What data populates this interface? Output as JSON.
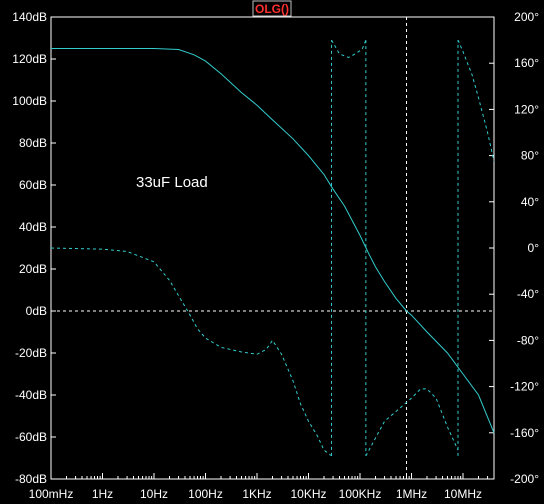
{
  "chart_data": {
    "type": "line",
    "trace_name": "OLG()",
    "annotation": "33uF Load",
    "x_scale": "log",
    "x_ticks": [
      "100mHz",
      "1Hz",
      "10Hz",
      "100Hz",
      "1KHz",
      "10KHz",
      "100KHz",
      "1MHz",
      "10MHz"
    ],
    "x_tick_values": [
      0.1,
      1,
      10,
      100,
      1000,
      10000,
      100000,
      1000000,
      10000000
    ],
    "xlim": [
      0.1,
      40000000
    ],
    "y_left_ticks": [
      "140dB",
      "120dB",
      "100dB",
      "80dB",
      "60dB",
      "40dB",
      "20dB",
      "0dB",
      "-20dB",
      "-40dB",
      "-60dB",
      "-80dB"
    ],
    "y_left_tick_values": [
      140,
      120,
      100,
      80,
      60,
      40,
      20,
      0,
      -20,
      -40,
      -60,
      -80
    ],
    "ylim_left": [
      -80,
      140
    ],
    "y_right_ticks": [
      "200°",
      "160°",
      "120°",
      "80°",
      "40°",
      "0°",
      "-40°",
      "-80°",
      "-120°",
      "-160°",
      "-200°"
    ],
    "y_right_tick_values": [
      200,
      160,
      120,
      80,
      40,
      0,
      -40,
      -80,
      -120,
      -160,
      -200
    ],
    "ylim_right": [
      -200,
      200
    ],
    "grid": false,
    "reference_line_db": 0,
    "cursor_x": 800000,
    "colors": {
      "background": "#000000",
      "axis": "#ffffff",
      "trace": "#33cccc",
      "trace_name": "#ff3030",
      "reference": "#ffffff"
    },
    "series": [
      {
        "kind": "magnitude",
        "axis": "left",
        "style": "solid",
        "x": [
          0.1,
          1,
          10,
          30,
          60,
          100,
          200,
          500,
          1000,
          2000,
          5000,
          10000,
          20000,
          30000,
          50000,
          100000,
          150000,
          200000,
          300000,
          500000,
          800000,
          1000000,
          2000000,
          5000000,
          10000000,
          20000000,
          40000000
        ],
        "y": [
          125,
          125,
          125,
          124.5,
          122,
          119,
          113,
          104,
          98,
          91,
          82,
          74,
          65,
          58,
          50,
          36,
          27,
          21,
          14,
          6,
          0,
          -2,
          -10,
          -20,
          -30,
          -40,
          -58
        ]
      },
      {
        "kind": "phase",
        "axis": "right",
        "style": "dashed",
        "segments": [
          {
            "x": [
              0.1,
              1,
              3,
              10,
              20,
              50,
              70,
              100,
              200,
              500,
              1000,
              1500,
              2000,
              3000,
              5000,
              7000,
              10000,
              15000,
              20000,
              28000
            ],
            "y": [
              0,
              -1,
              -3,
              -12,
              -28,
              -58,
              -70,
              -78,
              -86,
              -90,
              -92,
              -88,
              -80,
              -92,
              -115,
              -135,
              -150,
              -163,
              -175,
              -180
            ]
          },
          {
            "x": [
              28000,
              28000
            ],
            "y": [
              -180,
              180
            ]
          },
          {
            "x": [
              28000,
              40000,
              60000,
              80000,
              110000,
              130000
            ],
            "y": [
              180,
              168,
              165,
              168,
              172,
              180
            ]
          },
          {
            "x": [
              130000,
              130000
            ],
            "y": [
              180,
              -180
            ]
          },
          {
            "x": [
              130000,
              300000,
              1000000,
              1500000,
              2000000,
              3000000,
              5000000,
              8000000
            ],
            "y": [
              -180,
              -150,
              -130,
              -122,
              -122,
              -130,
              -155,
              -175
            ]
          },
          {
            "x": [
              8000000,
              8000000
            ],
            "y": [
              -180,
              180
            ]
          },
          {
            "x": [
              8000000,
              10000000,
              15000000,
              20000000,
              30000000,
              40000000
            ],
            "y": [
              180,
              170,
              150,
              130,
              100,
              75
            ]
          }
        ]
      }
    ]
  }
}
